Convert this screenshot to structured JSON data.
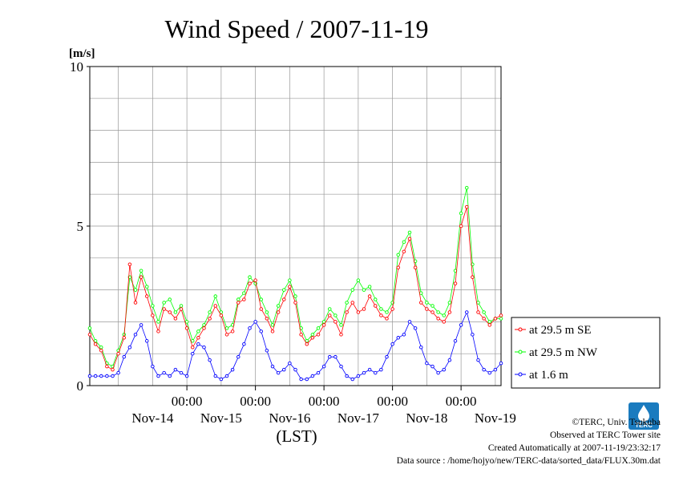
{
  "chart_data": {
    "type": "line",
    "title": "Wind Speed / 2007-11-19",
    "ylabel": "[m/s]",
    "xlabel": "(LST)",
    "ylim": [
      0,
      10
    ],
    "yticks": [
      "0",
      "5",
      "10"
    ],
    "grid": true,
    "xlim": [
      "2007-11-13T14:00",
      "2007-11-20T02:00"
    ],
    "time_tick_labels": [
      "00:00",
      "00:00",
      "00:00",
      "00:00",
      "00:00"
    ],
    "day_labels": [
      "Nov-14",
      "Nov-15",
      "Nov-16",
      "Nov-17",
      "Nov-18",
      "Nov-19"
    ],
    "legend_placement": "right",
    "x_hours": [
      0,
      2,
      4,
      6,
      8,
      10,
      12,
      14,
      16,
      18,
      20,
      22,
      24,
      26,
      28,
      30,
      32,
      34,
      36,
      38,
      40,
      42,
      44,
      46,
      48,
      50,
      52,
      54,
      56,
      58,
      60,
      62,
      64,
      66,
      68,
      70,
      72,
      74,
      76,
      78,
      80,
      82,
      84,
      86,
      88,
      90,
      92,
      94,
      96,
      98,
      100,
      102,
      104,
      106,
      108,
      110,
      112,
      114,
      116,
      118,
      120,
      122,
      124,
      126,
      128,
      130,
      132,
      134,
      136,
      138,
      140,
      142,
      144
    ],
    "series": [
      {
        "name": "at 29.5 m SE",
        "color": "#ff0000",
        "values": [
          1.6,
          1.3,
          1.1,
          0.6,
          0.5,
          1.0,
          1.5,
          3.8,
          2.6,
          3.4,
          2.8,
          2.2,
          1.7,
          2.4,
          2.3,
          2.1,
          2.4,
          1.8,
          1.2,
          1.5,
          1.8,
          2.1,
          2.5,
          2.2,
          1.6,
          1.7,
          2.6,
          2.7,
          3.2,
          3.3,
          2.4,
          2.1,
          1.7,
          2.3,
          2.7,
          3.1,
          2.6,
          1.6,
          1.3,
          1.5,
          1.6,
          1.9,
          2.2,
          2.0,
          1.6,
          2.3,
          2.6,
          2.3,
          2.4,
          2.8,
          2.5,
          2.2,
          2.1,
          2.4,
          3.7,
          4.2,
          4.6,
          3.7,
          2.6,
          2.4,
          2.3,
          2.1,
          2.0,
          2.3,
          3.2,
          5.0,
          5.6,
          3.4,
          2.3,
          2.1,
          1.9,
          2.1,
          2.2
        ]
      },
      {
        "name": "at 29.5 m NW",
        "color": "#00ff00",
        "values": [
          1.8,
          1.4,
          1.2,
          0.7,
          0.6,
          1.1,
          1.6,
          3.4,
          3.0,
          3.6,
          3.1,
          2.5,
          2.0,
          2.6,
          2.7,
          2.3,
          2.5,
          2.0,
          1.4,
          1.7,
          1.9,
          2.3,
          2.8,
          2.3,
          1.8,
          1.9,
          2.7,
          2.9,
          3.4,
          3.2,
          2.7,
          2.3,
          1.9,
          2.5,
          3.0,
          3.3,
          2.8,
          1.8,
          1.4,
          1.6,
          1.8,
          2.0,
          2.4,
          2.2,
          1.9,
          2.6,
          3.0,
          3.3,
          3.0,
          3.1,
          2.7,
          2.4,
          2.3,
          2.6,
          4.1,
          4.5,
          4.8,
          3.9,
          2.9,
          2.6,
          2.5,
          2.3,
          2.2,
          2.6,
          3.6,
          5.4,
          6.2,
          3.8,
          2.6,
          2.3,
          2.0,
          2.1,
          2.1
        ]
      },
      {
        "name": "at 1.6 m",
        "color": "#0000ff",
        "values": [
          0.3,
          0.3,
          0.3,
          0.3,
          0.3,
          0.4,
          0.9,
          1.2,
          1.6,
          1.9,
          1.4,
          0.6,
          0.3,
          0.4,
          0.3,
          0.5,
          0.4,
          0.3,
          1.0,
          1.3,
          1.2,
          0.8,
          0.3,
          0.2,
          0.3,
          0.5,
          0.9,
          1.3,
          1.8,
          2.0,
          1.7,
          1.1,
          0.6,
          0.4,
          0.5,
          0.7,
          0.5,
          0.2,
          0.2,
          0.3,
          0.4,
          0.6,
          0.9,
          0.9,
          0.6,
          0.3,
          0.2,
          0.3,
          0.4,
          0.5,
          0.4,
          0.5,
          0.9,
          1.3,
          1.5,
          1.6,
          2.0,
          1.8,
          1.2,
          0.7,
          0.6,
          0.4,
          0.5,
          0.8,
          1.4,
          1.9,
          2.3,
          1.6,
          0.8,
          0.5,
          0.4,
          0.5,
          0.7
        ]
      }
    ]
  },
  "footer": {
    "copyright": "©TERC, Univ. Tsukuba",
    "observed": "Observed at TERC Tower site",
    "created": "Created Automatically at 2007-11-19/23:32:17",
    "source": "Data source : /home/hojyo/new/TERC-data/sorted_data/FLUX.30m.dat"
  },
  "logo": {
    "text": "TERC"
  }
}
